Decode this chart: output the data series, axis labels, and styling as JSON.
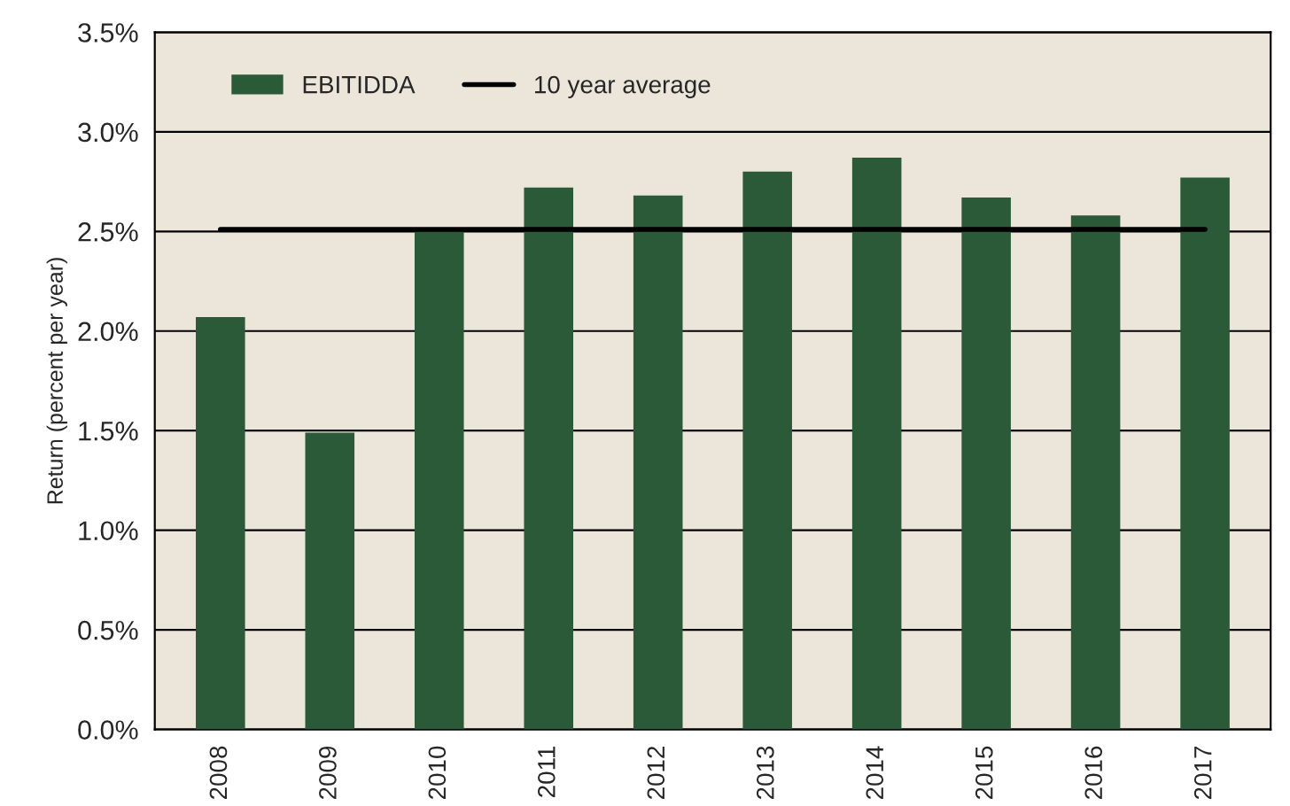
{
  "chart_data": {
    "type": "bar",
    "ylabel": "Return (percent per year)",
    "categories": [
      "2008",
      "2009",
      "2010",
      "2011",
      "2012",
      "2013",
      "2014",
      "2015",
      "2016",
      "2017"
    ],
    "series": [
      {
        "name": "EBITIDDA",
        "color": "#2a5a38",
        "values": [
          2.07,
          1.49,
          2.5,
          2.72,
          2.68,
          2.8,
          2.87,
          2.67,
          2.58,
          2.77
        ]
      },
      {
        "name": "10 year average",
        "type": "line",
        "color": "#000000",
        "values": [
          2.51,
          2.51,
          2.51,
          2.51,
          2.51,
          2.51,
          2.51,
          2.51,
          2.51,
          2.51
        ]
      }
    ],
    "ylim": [
      0,
      3.5
    ],
    "yticks": [
      {
        "value": 0,
        "label": "0.0%"
      },
      {
        "value": 0.5,
        "label": "0.5%"
      },
      {
        "value": 1.0,
        "label": "1.0%"
      },
      {
        "value": 1.5,
        "label": "1.5%"
      },
      {
        "value": 2.0,
        "label": "2.0%"
      },
      {
        "value": 2.5,
        "label": "2.5%"
      },
      {
        "value": 3.0,
        "label": "3.0%"
      },
      {
        "value": 3.5,
        "label": "3.5%"
      }
    ],
    "grid": "y",
    "legend": "top left",
    "marker": "none",
    "line_style": "solid"
  }
}
